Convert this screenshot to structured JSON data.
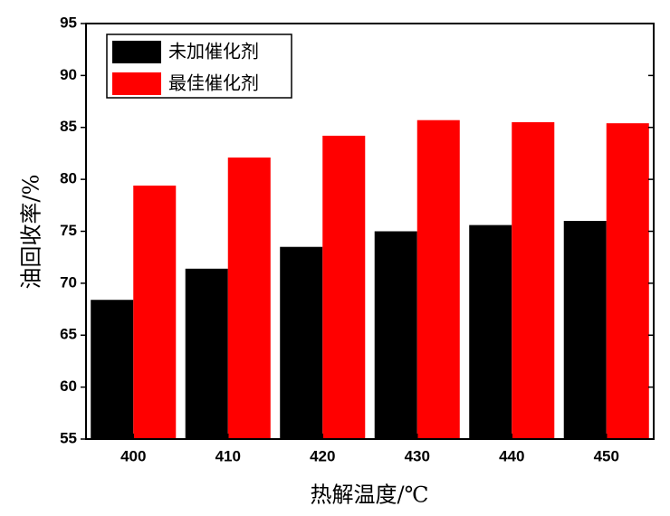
{
  "chart_data": {
    "type": "bar",
    "xlabel": "热解温度/℃",
    "ylabel": "油回收率/%",
    "categories": [
      "400",
      "410",
      "420",
      "430",
      "440",
      "450"
    ],
    "series": [
      {
        "name": "未加催化剂",
        "color": "#000000",
        "values": [
          68.4,
          71.4,
          73.5,
          75.0,
          75.6,
          76.0
        ]
      },
      {
        "name": "最佳催化剂",
        "color": "#ff0000",
        "values": [
          79.4,
          82.1,
          84.2,
          85.7,
          85.5,
          85.4
        ]
      }
    ],
    "ylim": [
      55,
      95
    ],
    "yticks": [
      55,
      60,
      65,
      70,
      75,
      80,
      85,
      90,
      95
    ],
    "legend": "upper left"
  }
}
